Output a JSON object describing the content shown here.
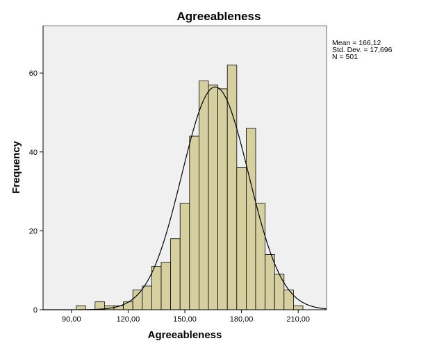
{
  "chart_data": {
    "type": "bar",
    "title": "Agreeableness",
    "xlabel": "Agreeableness",
    "ylabel": "Frequency",
    "bin_width": 5,
    "bins": [
      {
        "x0": 92.5,
        "x1": 97.5,
        "count": 1
      },
      {
        "x0": 97.5,
        "x1": 102.5,
        "count": 0
      },
      {
        "x0": 102.5,
        "x1": 107.5,
        "count": 2
      },
      {
        "x0": 107.5,
        "x1": 112.5,
        "count": 1
      },
      {
        "x0": 112.5,
        "x1": 117.5,
        "count": 1
      },
      {
        "x0": 117.5,
        "x1": 122.5,
        "count": 2
      },
      {
        "x0": 122.5,
        "x1": 127.5,
        "count": 5
      },
      {
        "x0": 127.5,
        "x1": 132.5,
        "count": 6
      },
      {
        "x0": 132.5,
        "x1": 137.5,
        "count": 11
      },
      {
        "x0": 137.5,
        "x1": 142.5,
        "count": 12
      },
      {
        "x0": 142.5,
        "x1": 147.5,
        "count": 18
      },
      {
        "x0": 147.5,
        "x1": 152.5,
        "count": 27
      },
      {
        "x0": 152.5,
        "x1": 157.5,
        "count": 44
      },
      {
        "x0": 157.5,
        "x1": 162.5,
        "count": 58
      },
      {
        "x0": 162.5,
        "x1": 167.5,
        "count": 57
      },
      {
        "x0": 167.5,
        "x1": 172.5,
        "count": 56
      },
      {
        "x0": 172.5,
        "x1": 177.5,
        "count": 62
      },
      {
        "x0": 177.5,
        "x1": 182.5,
        "count": 36
      },
      {
        "x0": 182.5,
        "x1": 187.5,
        "count": 46
      },
      {
        "x0": 187.5,
        "x1": 192.5,
        "count": 27
      },
      {
        "x0": 192.5,
        "x1": 197.5,
        "count": 14
      },
      {
        "x0": 197.5,
        "x1": 202.5,
        "count": 9
      },
      {
        "x0": 202.5,
        "x1": 207.5,
        "count": 5
      },
      {
        "x0": 207.5,
        "x1": 212.5,
        "count": 1
      }
    ],
    "xlim": [
      75,
      225
    ],
    "ylim": [
      0,
      72
    ],
    "x_ticks": [
      90,
      120,
      150,
      180,
      210
    ],
    "x_tick_labels": [
      "90,00",
      "120,00",
      "150,00",
      "180,00",
      "210,00"
    ],
    "y_ticks": [
      0,
      20,
      40,
      60
    ],
    "y_tick_labels": [
      "0",
      "20",
      "40",
      "60"
    ],
    "normal_curve": {
      "mean": 166.12,
      "std": 17.696,
      "n": 501
    },
    "stats": {
      "mean_text": "Mean = 166,12",
      "std_text": "Std. Dev. = 17,696",
      "n_text": "N = 501"
    },
    "grid": false,
    "legend": "right"
  },
  "colors": {
    "plot_background": "#f0f0f0",
    "bar_fill": "#d6d0a0",
    "bar_stroke": "#000000",
    "curve": "#000000",
    "axis": "#000000"
  }
}
